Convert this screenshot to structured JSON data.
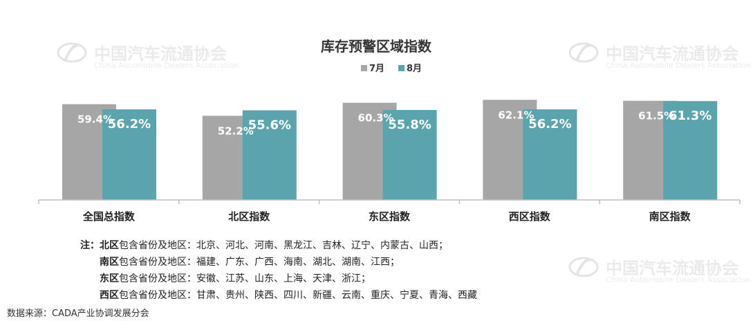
{
  "watermark": {
    "cn": "中国汽车流通协会",
    "en": "China Automobile Dealers Association",
    "logo_text": "CADA"
  },
  "chart_data": {
    "type": "bar",
    "title": "库存预警区域指数",
    "categories": [
      "全国总指数",
      "北区指数",
      "东区指数",
      "西区指数",
      "南区指数"
    ],
    "series": [
      {
        "name": "7月",
        "color": "#a6a6a6",
        "values": [
          59.4,
          52.2,
          60.3,
          62.1,
          61.5
        ],
        "labels": [
          "59.4%",
          "52.2%",
          "60.3%",
          "62.1%",
          "61.5%"
        ]
      },
      {
        "name": "8月",
        "color": "#5ba3ad",
        "values": [
          56.2,
          55.6,
          55.8,
          56.2,
          61.3
        ],
        "labels": [
          "56.2%",
          "55.6%",
          "55.8%",
          "56.2%",
          "61.3%"
        ]
      }
    ],
    "legend_position": "top-center",
    "grid": false,
    "xlabel": "",
    "ylabel": ""
  },
  "notes": {
    "lead": "注：",
    "lines": [
      {
        "region": "北区",
        "text": "包含省份及地区：北京、河北、河南、黑龙江、吉林、辽宁、内蒙古、山西；"
      },
      {
        "region": "南区",
        "text": "包含省份及地区：福建、广东、广西、海南、湖北、湖南、江西；"
      },
      {
        "region": "东区",
        "text": "包含省份及地区：安徽、江苏、山东、上海、天津、浙江；"
      },
      {
        "region": "西区",
        "text": "包含省份及地区：甘肃、贵州、陕西、四川、新疆、云南、重庆、宁夏、青海、西藏"
      }
    ]
  },
  "source": "数据来源：CADA产业协调发展分会"
}
